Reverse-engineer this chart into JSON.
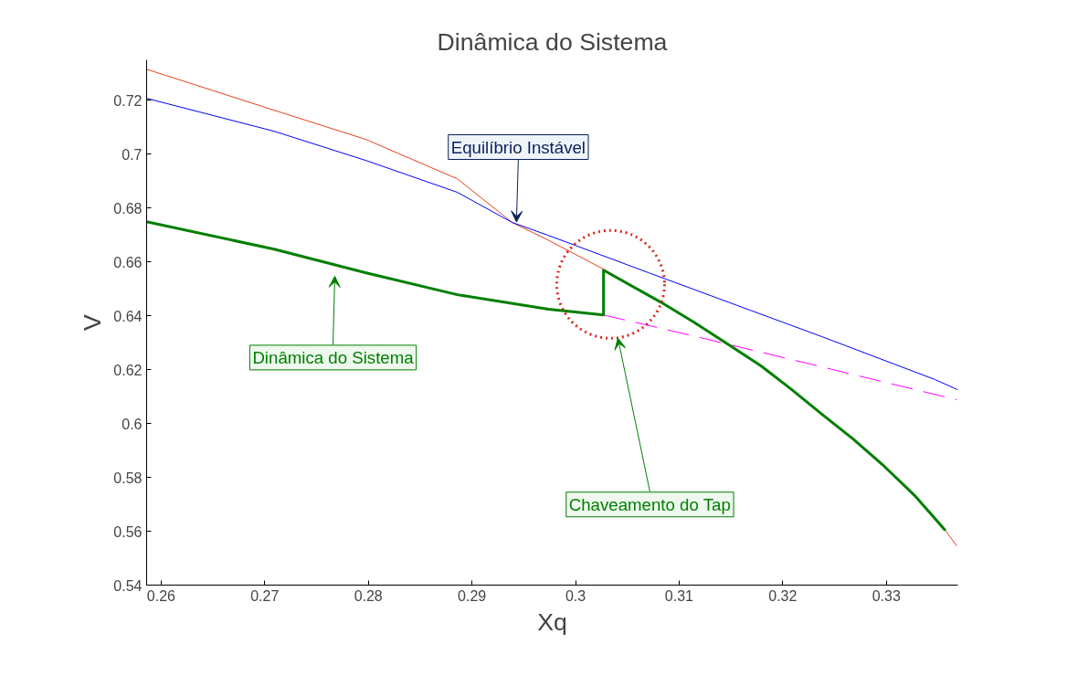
{
  "chart_data": {
    "type": "line",
    "title": "Dinâmica do Sistema",
    "xlabel": "Xq",
    "ylabel": "V",
    "xlim": [
      0.2586,
      0.3369
    ],
    "ylim": [
      0.54,
      0.735
    ],
    "xticks": [
      0.26,
      0.27,
      0.28,
      0.29,
      0.3,
      0.31,
      0.32,
      0.33
    ],
    "yticks": [
      0.54,
      0.56,
      0.58,
      0.6,
      0.62,
      0.64,
      0.66,
      0.68,
      0.7,
      0.72
    ],
    "series": [
      {
        "color": "#e8401c",
        "line_style": "solid",
        "x": [
          0.2586,
          0.2709,
          0.2798,
          0.2886,
          0.2939,
          0.2974,
          0.3027,
          0.3082,
          0.3148,
          0.3179,
          0.3238,
          0.3298,
          0.3357,
          0.3368
        ],
        "values": [
          0.7315,
          0.7163,
          0.7054,
          0.6908,
          0.6746,
          0.668,
          0.6573,
          0.6451,
          null,
          null,
          null,
          null,
          0.5603,
          0.5545
        ]
      },
      {
        "color": "#0000ff",
        "line_style": "solid",
        "x": [
          0.2586,
          0.2709,
          0.2798,
          0.2886,
          0.2939,
          0.2974,
          0.3071,
          0.3238,
          0.3347,
          0.3369
        ],
        "values": [
          0.7207,
          0.7085,
          0.6976,
          0.6858,
          0.6746,
          0.6698,
          0.6559,
          0.6322,
          0.6163,
          0.6125
        ]
      },
      {
        "color": "#ff00ff",
        "line_style": "dashed",
        "x": [
          0.3027,
          0.3106,
          0.3223,
          0.3368
        ],
        "values": [
          0.6403,
          0.6332,
          0.6224,
          0.6088
        ]
      },
      {
        "color": "#007f00",
        "line_style": "solid",
        "x": [
          0.2586,
          0.2709,
          0.2798,
          0.2886,
          0.2974,
          0.3027,
          0.3027,
          0.3082,
          0.3115,
          0.3148,
          0.3179,
          0.3208,
          0.3238,
          0.3268,
          0.3298,
          0.3328,
          0.3357
        ],
        "values": [
          0.6749,
          0.6647,
          0.6559,
          0.6478,
          0.6424,
          0.6403,
          0.6569,
          0.6451,
          0.6374,
          0.6292,
          0.6214,
          0.6128,
          0.6034,
          0.5942,
          0.5841,
          0.573,
          0.5603
        ]
      }
    ],
    "annotations": [
      {
        "text": "Equilíbrio Instável",
        "x": 0.2943,
        "y": 0.6748
      },
      "Dinâmica do Sistema",
      "Chaveamento do Tap"
    ]
  }
}
